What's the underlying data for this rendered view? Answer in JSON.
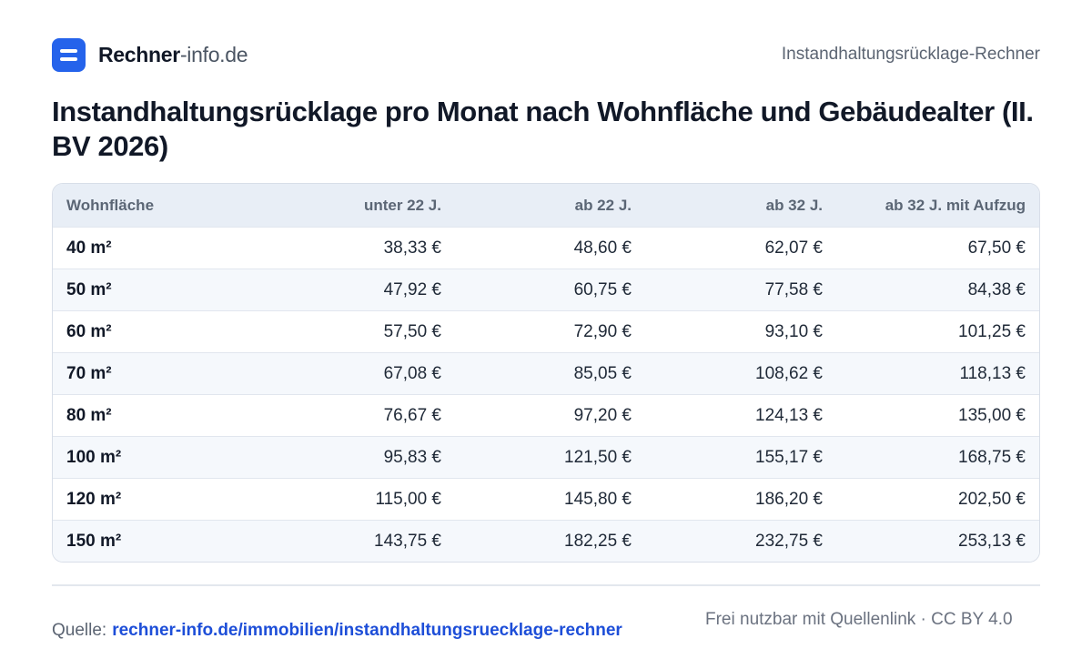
{
  "header": {
    "brand_bold": "Rechner",
    "brand_light": "-info.de",
    "right_label": "Instandhaltungsrücklage-Rechner"
  },
  "page_title": "Instandhaltungsrücklage pro Monat nach Wohnfläche und Gebäudealter (II. BV 2026)",
  "table": {
    "headers": [
      "Wohnfläche",
      "unter 22 J.",
      "ab 22 J.",
      "ab 32 J.",
      "ab 32 J. mit Aufzug"
    ],
    "rows": [
      [
        "40 m²",
        "38,33 €",
        "48,60 €",
        "62,07 €",
        "67,50 €"
      ],
      [
        "50 m²",
        "47,92 €",
        "60,75 €",
        "77,58 €",
        "84,38 €"
      ],
      [
        "60 m²",
        "57,50 €",
        "72,90 €",
        "93,10 €",
        "101,25 €"
      ],
      [
        "70 m²",
        "67,08 €",
        "85,05 €",
        "108,62 €",
        "118,13 €"
      ],
      [
        "80 m²",
        "76,67 €",
        "97,20 €",
        "124,13 €",
        "135,00 €"
      ],
      [
        "100 m²",
        "95,83 €",
        "121,50 €",
        "155,17 €",
        "168,75 €"
      ],
      [
        "120 m²",
        "115,00 €",
        "145,80 €",
        "186,20 €",
        "202,50 €"
      ],
      [
        "150 m²",
        "143,75 €",
        "182,25 €",
        "232,75 €",
        "253,13 €"
      ]
    ]
  },
  "footer": {
    "source_label": "Quelle:",
    "source_link": "rechner-info.de/immobilien/instandhaltungsruecklage-rechner",
    "license": "Frei nutzbar mit Quellenlink · CC BY 4.0"
  },
  "colors": {
    "accent": "#2563eb",
    "link": "#1d4ed8",
    "header_bg": "#e8eef6",
    "stripe_bg": "#f5f8fc"
  },
  "icons": {
    "logo": "logo-icon"
  }
}
